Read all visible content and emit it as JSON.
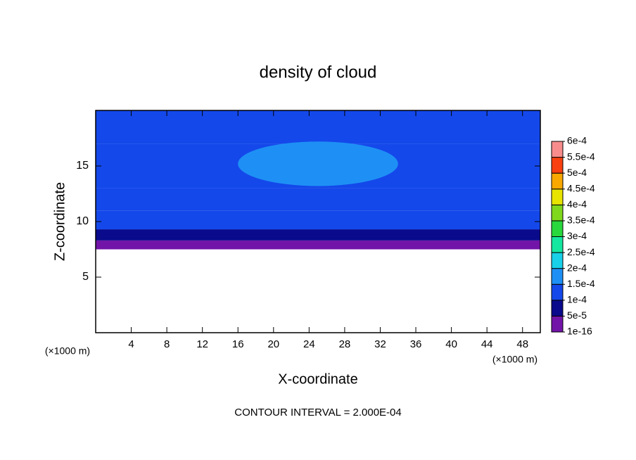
{
  "chart_data": {
    "type": "contour",
    "title": "density of cloud",
    "x_label": "X-coordinate",
    "y_label": "Z-coordinate",
    "x_unit_left": "(×1000 m)",
    "x_unit_right": "(×1000 m)",
    "footer": "CONTOUR INTERVAL = 2.000E-04",
    "xlim": [
      0,
      50
    ],
    "xticks": [
      4,
      8,
      12,
      16,
      20,
      24,
      28,
      32,
      36,
      40,
      44,
      48
    ],
    "ylim": [
      0,
      20
    ],
    "yticks": [
      5,
      10,
      15
    ],
    "field": {
      "z": [
        7.5,
        8.3,
        9.3,
        11,
        13,
        17,
        20
      ],
      "values": [
        3e-05,
        8e-05,
        0.00011,
        0.00013,
        0.00014,
        0.00013
      ]
    },
    "patches": [
      {
        "x": [
          16,
          34
        ],
        "z": [
          13.2,
          17.2
        ],
        "value": 0.00016
      }
    ],
    "colorbar": {
      "levels": [
        {
          "value": 1e-16,
          "label": "1e-16"
        },
        {
          "value": 5e-05,
          "label": "5e-5"
        },
        {
          "value": 0.0001,
          "label": "1e-4"
        },
        {
          "value": 0.00015,
          "label": "1.5e-4"
        },
        {
          "value": 0.0002,
          "label": "2e-4"
        },
        {
          "value": 0.00025,
          "label": "2.5e-4"
        },
        {
          "value": 0.0003,
          "label": "3e-4"
        },
        {
          "value": 0.00035,
          "label": "3.5e-4"
        },
        {
          "value": 0.0004,
          "label": "4e-4"
        },
        {
          "value": 0.00045,
          "label": "4.5e-4"
        },
        {
          "value": 0.0005,
          "label": "5e-4"
        },
        {
          "value": 0.00055,
          "label": "5.5e-4"
        },
        {
          "value": 0.0006,
          "label": "6e-4"
        }
      ],
      "colors": [
        "#7214a8",
        "#0a0a8c",
        "#1448ea",
        "#1e90f5",
        "#18d0e8",
        "#14e8a0",
        "#28d83c",
        "#80d81c",
        "#e8e400",
        "#f8a800",
        "#f84010",
        "#f88c8c"
      ]
    }
  }
}
